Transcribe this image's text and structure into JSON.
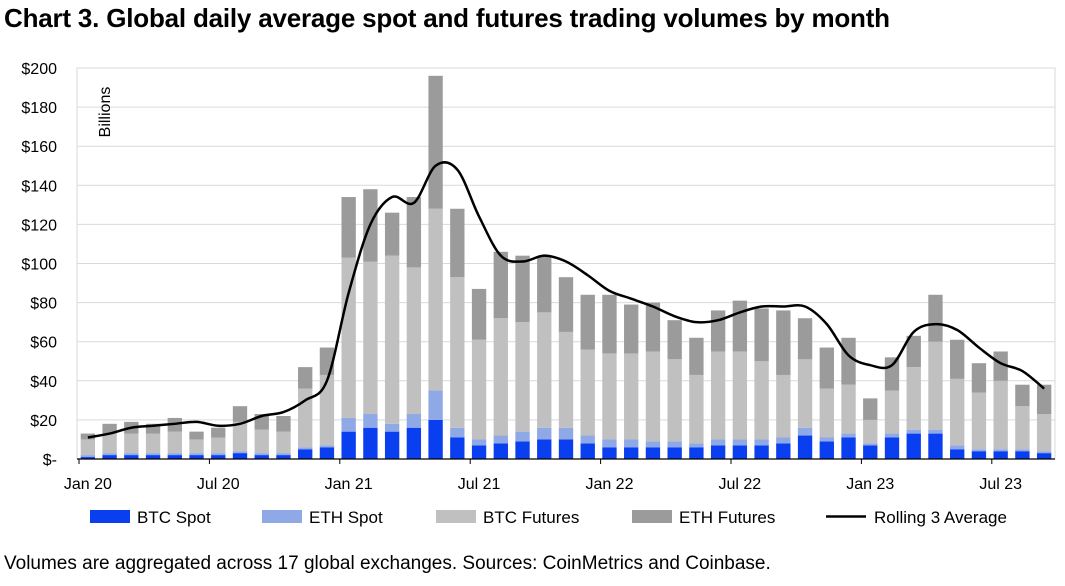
{
  "title": "Chart 3. Global daily average spot and futures trading volumes by month",
  "footnote": "Volumes are aggregated across 17 global exchanges. Sources: CoinMetrics and Coinbase.",
  "chart_data": {
    "type": "bar",
    "stacked": true,
    "title": "Chart 3. Global daily average spot and futures trading volumes by month",
    "ylabel": "Billions",
    "ylim": [
      0,
      200
    ],
    "yticks": [
      0,
      20,
      40,
      60,
      80,
      100,
      120,
      140,
      160,
      180,
      200
    ],
    "ytick_labels": [
      "$-",
      "$20",
      "$40",
      "$60",
      "$80",
      "$100",
      "$120",
      "$140",
      "$160",
      "$180",
      "$200"
    ],
    "xtick_labels": [
      {
        "index": 0,
        "label": "Jan 20"
      },
      {
        "index": 6,
        "label": "Jul 20"
      },
      {
        "index": 12,
        "label": "Jan 21"
      },
      {
        "index": 18,
        "label": "Jul 21"
      },
      {
        "index": 24,
        "label": "Jan 22"
      },
      {
        "index": 30,
        "label": "Jul 22"
      },
      {
        "index": 36,
        "label": "Jan 23"
      },
      {
        "index": 42,
        "label": "Jul 23"
      }
    ],
    "legend_position": "bottom",
    "grid": true,
    "categories": [
      "2020-01",
      "2020-02",
      "2020-03",
      "2020-04",
      "2020-05",
      "2020-06",
      "2020-07",
      "2020-08",
      "2020-09",
      "2020-10",
      "2020-11",
      "2020-12",
      "2021-01",
      "2021-02",
      "2021-03",
      "2021-04",
      "2021-05",
      "2021-06",
      "2021-07",
      "2021-08",
      "2021-09",
      "2021-10",
      "2021-11",
      "2021-12",
      "2022-01",
      "2022-02",
      "2022-03",
      "2022-04",
      "2022-05",
      "2022-06",
      "2022-07",
      "2022-08",
      "2022-09",
      "2022-10",
      "2022-11",
      "2022-12",
      "2023-01",
      "2023-02",
      "2023-03",
      "2023-04",
      "2023-05",
      "2023-06",
      "2023-07",
      "2023-08",
      "2023-09"
    ],
    "series": [
      {
        "name": "BTC Spot",
        "color": "#0a3ff0",
        "values": [
          1,
          2,
          2,
          2,
          2,
          2,
          2,
          3,
          2,
          2,
          5,
          6,
          14,
          16,
          14,
          16,
          20,
          11,
          7,
          8,
          9,
          10,
          10,
          8,
          6,
          6,
          6,
          6,
          6,
          7,
          7,
          7,
          8,
          12,
          9,
          11,
          7,
          11,
          13,
          13,
          5,
          4,
          4,
          4,
          3
        ]
      },
      {
        "name": "ETH Spot",
        "color": "#8fa8e6",
        "values": [
          1,
          1,
          1,
          1,
          1,
          1,
          1,
          1,
          1,
          1,
          1,
          1,
          7,
          7,
          4,
          7,
          15,
          5,
          3,
          4,
          5,
          6,
          6,
          4,
          4,
          4,
          3,
          3,
          2,
          3,
          3,
          3,
          3,
          4,
          2,
          2,
          1,
          2,
          2,
          2,
          2,
          1,
          1,
          1,
          1
        ]
      },
      {
        "name": "BTC Futures",
        "color": "#c0c0c0",
        "values": [
          8,
          10,
          10,
          10,
          11,
          7,
          8,
          15,
          12,
          11,
          30,
          36,
          82,
          78,
          86,
          75,
          93,
          77,
          51,
          60,
          56,
          59,
          49,
          44,
          44,
          44,
          46,
          42,
          35,
          45,
          45,
          40,
          32,
          35,
          25,
          25,
          12,
          22,
          32,
          45,
          34,
          29,
          35,
          22,
          19
        ]
      },
      {
        "name": "ETH Futures",
        "color": "#9b9b9b",
        "values": [
          3,
          5,
          6,
          5,
          7,
          4,
          5,
          8,
          8,
          8,
          11,
          14,
          31,
          37,
          22,
          36,
          68,
          35,
          26,
          34,
          34,
          29,
          28,
          28,
          30,
          25,
          25,
          20,
          19,
          21,
          26,
          27,
          33,
          21,
          21,
          24,
          11,
          17,
          16,
          24,
          20,
          15,
          15,
          11,
          15
        ]
      }
    ],
    "line": {
      "name": "Rolling 3 Average",
      "color": "#000000",
      "values": [
        11,
        13,
        16,
        17,
        18,
        19,
        17,
        18,
        22,
        24,
        30,
        40,
        85,
        120,
        134,
        131,
        150,
        148,
        124,
        104,
        101,
        104,
        101,
        94,
        86,
        82,
        78,
        73,
        70,
        71,
        75,
        78,
        78,
        78,
        69,
        53,
        48,
        48,
        65,
        69,
        66,
        57,
        49,
        45,
        36
      ]
    }
  },
  "legend_labels": {
    "btc_spot": "BTC Spot",
    "eth_spot": "ETH Spot",
    "btc_futures": "BTC Futures",
    "eth_futures": "ETH Futures",
    "rolling": "Rolling 3 Average"
  }
}
